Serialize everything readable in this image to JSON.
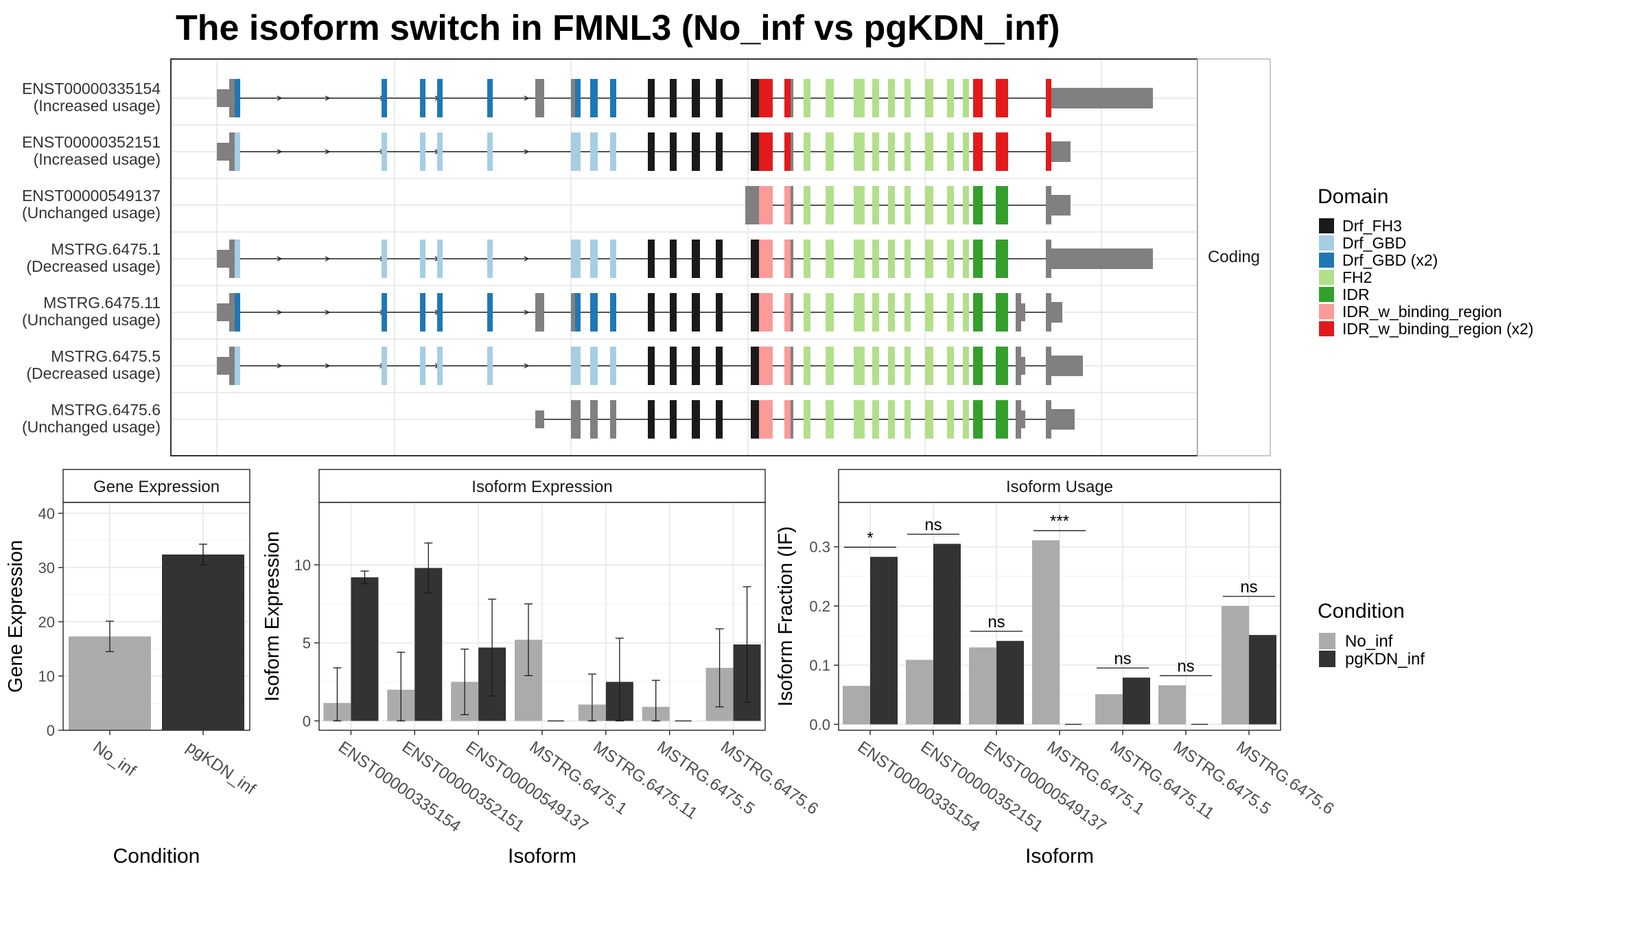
{
  "title": "The isoform switch in FMNL3 (No_inf vs pgKDN_inf)",
  "colors": {
    "No_inf": "#ababab",
    "pgKDN_inf": "#333333",
    "utr": "#808080",
    "Drf_FH3": "#1a1a1a",
    "Drf_GBD": "#a6cee3",
    "Drf_GBD (x2)": "#1f78b4",
    "FH2": "#b2df8a",
    "IDR": "#33a02c",
    "IDR_w_binding_region": "#fb9a99",
    "IDR_w_binding_region (x2)": "#e31a1c"
  },
  "structure": {
    "strip_label": "Coding",
    "legend_title": "Domain",
    "legend_items": [
      "Drf_FH3",
      "Drf_GBD",
      "Drf_GBD (x2)",
      "FH2",
      "IDR",
      "IDR_w_binding_region",
      "IDR_w_binding_region (x2)"
    ],
    "isoforms": [
      {
        "name": "ENST00000335154",
        "usage": "(Increased usage)",
        "gbd": "Drf_GBD (x2)",
        "idrb": "IDR_w_binding_region (x2)",
        "idr": "IDR_w_binding_region (x2)",
        "start": "full",
        "tail": "long"
      },
      {
        "name": "ENST00000352151",
        "usage": "(Increased usage)",
        "gbd": "Drf_GBD",
        "idrb": "IDR_w_binding_region (x2)",
        "idr": "IDR_w_binding_region (x2)",
        "start": "full",
        "tail": "short"
      },
      {
        "name": "ENST00000549137",
        "usage": "(Unchanged usage)",
        "gbd": "",
        "idrb": "IDR_w_binding_region",
        "idr": "IDR",
        "start": "late",
        "tail": "short"
      },
      {
        "name": "MSTRG.6475.1",
        "usage": "(Decreased usage)",
        "gbd": "Drf_GBD",
        "idrb": "IDR_w_binding_region",
        "idr": "IDR",
        "start": "full",
        "tail": "long"
      },
      {
        "name": "MSTRG.6475.11",
        "usage": "(Unchanged usage)",
        "gbd": "Drf_GBD (x2)",
        "idrb": "IDR_w_binding_region",
        "idr": "IDR",
        "start": "full",
        "tail": "split"
      },
      {
        "name": "MSTRG.6475.5",
        "usage": "(Decreased usage)",
        "gbd": "Drf_GBD",
        "idrb": "IDR_w_binding_region",
        "idr": "IDR",
        "start": "full",
        "tail": "mid"
      },
      {
        "name": "MSTRG.6475.6",
        "usage": "(Unchanged usage)",
        "gbd": "",
        "idrb": "IDR_w_binding_region",
        "idr": "IDR",
        "start": "mid",
        "tail": "mid2"
      }
    ]
  },
  "chart_data": [
    {
      "type": "bar",
      "title": "Gene Expression",
      "xlabel": "Condition",
      "ylabel": "Gene Expression",
      "ylim": [
        0,
        42
      ],
      "yticks": [
        0,
        10,
        20,
        30,
        40
      ],
      "categories": [
        "No_inf",
        "pgKDN_inf"
      ],
      "values": [
        17.3,
        32.4
      ],
      "errors": [
        [
          14.5,
          20.1
        ],
        [
          30.5,
          34.3
        ]
      ],
      "grid": true
    },
    {
      "type": "bar",
      "title": "Isoform Expression",
      "xlabel": "Isoform",
      "ylabel": "Isoform Expression",
      "ylim": [
        -0.6,
        14
      ],
      "yticks": [
        0,
        5,
        10
      ],
      "categories": [
        "ENST00000335154",
        "ENST00000352151",
        "ENST00000549137",
        "MSTRG.6475.1",
        "MSTRG.6475.11",
        "MSTRG.6475.5",
        "MSTRG.6475.6"
      ],
      "series": [
        {
          "name": "No_inf",
          "values": [
            1.15,
            2.0,
            2.5,
            5.2,
            1.05,
            0.9,
            3.4
          ],
          "errors": [
            [
              0,
              3.4
            ],
            [
              0,
              4.4
            ],
            [
              0.4,
              4.6
            ],
            [
              2.9,
              7.5
            ],
            [
              0,
              3.0
            ],
            [
              0,
              2.6
            ],
            [
              0.9,
              5.9
            ]
          ]
        },
        {
          "name": "pgKDN_inf",
          "values": [
            9.2,
            9.8,
            4.7,
            0,
            2.5,
            0,
            4.9
          ],
          "errors": [
            [
              8.8,
              9.6
            ],
            [
              8.2,
              11.4
            ],
            [
              1.6,
              7.8
            ],
            [
              0,
              0
            ],
            [
              0,
              5.3
            ],
            [
              0,
              0
            ],
            [
              1.2,
              8.6
            ]
          ]
        }
      ],
      "grid": true
    },
    {
      "type": "bar",
      "title": "Isoform Usage",
      "xlabel": "Isoform",
      "ylabel": "Isoform Fraction (IF)",
      "ylim": [
        -0.01,
        0.375
      ],
      "yticks": [
        0.0,
        0.1,
        0.2,
        0.3
      ],
      "ytick_labels": [
        "0.0",
        "0.1",
        "0.2",
        "0.3"
      ],
      "categories": [
        "ENST00000335154",
        "ENST00000352151",
        "ENST00000549137",
        "MSTRG.6475.1",
        "MSTRG.6475.11",
        "MSTRG.6475.5",
        "MSTRG.6475.6"
      ],
      "series": [
        {
          "name": "No_inf",
          "values": [
            0.065,
            0.109,
            0.13,
            0.311,
            0.051,
            0.066,
            0.2
          ]
        },
        {
          "name": "pgKDN_inf",
          "values": [
            0.283,
            0.305,
            0.141,
            0,
            0.079,
            0,
            0.151
          ]
        }
      ],
      "significance": [
        "*",
        "ns",
        "ns",
        "***",
        "ns",
        "ns",
        "ns"
      ],
      "grid": true
    }
  ],
  "condition_legend": {
    "title": "Condition",
    "items": [
      "No_inf",
      "pgKDN_inf"
    ]
  }
}
